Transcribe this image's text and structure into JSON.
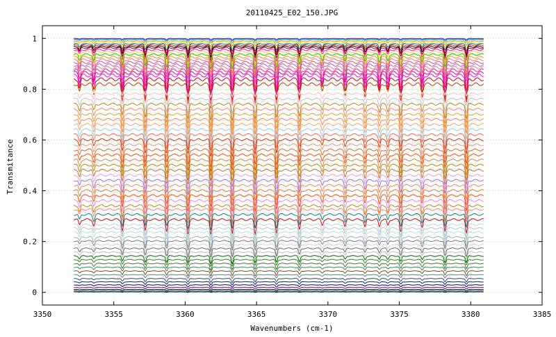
{
  "chart_data": {
    "type": "line",
    "title": "20110425_E02_150.JPG",
    "xlabel": "Wavenumbers (cm-1)",
    "ylabel": "Transmitance",
    "xlim": [
      3350,
      3385
    ],
    "ylim": [
      -0.05,
      1.05
    ],
    "data_x_range": [
      3352.2,
      3380.9
    ],
    "xticks": [
      3350,
      3355,
      3360,
      3365,
      3370,
      3375,
      3380,
      3385
    ],
    "xtick_labels": [
      "3350",
      "3355",
      "3360",
      "3365",
      "3370",
      "3375",
      "3380",
      "3385"
    ],
    "yticks": [
      0,
      0.2,
      0.4,
      0.6,
      0.8,
      1
    ],
    "ytick_labels": [
      "0",
      "0.2",
      "0.4",
      "0.6",
      "0.8",
      "1"
    ],
    "grid": true,
    "legend": "none",
    "absorption_lines": [
      {
        "x": 3352.6,
        "depth": 0.35
      },
      {
        "x": 3353.6,
        "depth": 0.4
      },
      {
        "x": 3355.6,
        "depth": 0.7
      },
      {
        "x": 3357.2,
        "depth": 0.75
      },
      {
        "x": 3358.7,
        "depth": 0.8
      },
      {
        "x": 3360.2,
        "depth": 0.9
      },
      {
        "x": 3361.8,
        "depth": 1.0
      },
      {
        "x": 3363.3,
        "depth": 0.95
      },
      {
        "x": 3364.9,
        "depth": 0.9
      },
      {
        "x": 3366.4,
        "depth": 0.85
      },
      {
        "x": 3368.0,
        "depth": 0.7
      },
      {
        "x": 3369.6,
        "depth": 0.35
      },
      {
        "x": 3371.2,
        "depth": 0.45
      },
      {
        "x": 3372.6,
        "depth": 0.5
      },
      {
        "x": 3373.6,
        "depth": 0.45
      },
      {
        "x": 3374.2,
        "depth": 0.4
      },
      {
        "x": 3375.1,
        "depth": 0.75
      },
      {
        "x": 3376.6,
        "depth": 0.5
      },
      {
        "x": 3378.2,
        "depth": 0.8
      },
      {
        "x": 3379.7,
        "depth": 0.85
      }
    ],
    "series": [
      {
        "baseline": 1.0,
        "depth": 0.005,
        "color": "#9400d3"
      },
      {
        "baseline": 0.998,
        "depth": 0.008,
        "color": "#009e73"
      },
      {
        "baseline": 0.995,
        "depth": 0.012,
        "color": "#56b4e9"
      },
      {
        "baseline": 0.99,
        "depth": 0.02,
        "color": "#e69f00"
      },
      {
        "baseline": 0.985,
        "depth": 0.025,
        "color": "#f0e442"
      },
      {
        "baseline": 0.98,
        "depth": 0.03,
        "color": "#0072b2"
      },
      {
        "baseline": 0.975,
        "depth": 0.035,
        "color": "#e51e10"
      },
      {
        "baseline": 0.97,
        "depth": 0.04,
        "color": "#000000"
      },
      {
        "baseline": 0.965,
        "depth": 0.045,
        "color": "#8b0000"
      },
      {
        "baseline": 0.958,
        "depth": 0.05,
        "color": "#ff00ff"
      },
      {
        "baseline": 0.95,
        "depth": 0.055,
        "color": "#ffd700"
      },
      {
        "baseline": 0.94,
        "depth": 0.06,
        "color": "#00cd00"
      },
      {
        "baseline": 0.93,
        "depth": 0.065,
        "color": "#ff8c00"
      },
      {
        "baseline": 0.92,
        "depth": 0.07,
        "color": "#ff69b4"
      },
      {
        "baseline": 0.91,
        "depth": 0.075,
        "color": "#cd5c5c"
      },
      {
        "baseline": 0.9,
        "depth": 0.08,
        "color": "#ba55d3"
      },
      {
        "baseline": 0.89,
        "depth": 0.085,
        "color": "#f08080"
      },
      {
        "baseline": 0.88,
        "depth": 0.09,
        "color": "#ff1493"
      },
      {
        "baseline": 0.87,
        "depth": 0.095,
        "color": "#c71585"
      },
      {
        "baseline": 0.86,
        "depth": 0.1,
        "color": "#ff00ff"
      },
      {
        "baseline": 0.845,
        "depth": 0.1,
        "color": "#cc0000"
      },
      {
        "baseline": 0.825,
        "depth": 0.09,
        "color": "#cc3300"
      },
      {
        "baseline": 0.8,
        "depth": 0.03,
        "color": "#ccffcc"
      },
      {
        "baseline": 0.785,
        "depth": 0.05,
        "color": "#ffb6c1"
      },
      {
        "baseline": 0.765,
        "depth": 0.06,
        "color": "#c0c0c0"
      },
      {
        "baseline": 0.745,
        "depth": 0.065,
        "color": "#b8860b"
      },
      {
        "baseline": 0.725,
        "depth": 0.065,
        "color": "#fa8072"
      },
      {
        "baseline": 0.705,
        "depth": 0.065,
        "color": "#daa520"
      },
      {
        "baseline": 0.685,
        "depth": 0.065,
        "color": "#ff7f50"
      },
      {
        "baseline": 0.665,
        "depth": 0.065,
        "color": "#f4a460"
      },
      {
        "baseline": 0.645,
        "depth": 0.065,
        "color": "#87ceeb"
      },
      {
        "baseline": 0.625,
        "depth": 0.065,
        "color": "#ff6347"
      },
      {
        "baseline": 0.605,
        "depth": 0.065,
        "color": "#cd3700"
      },
      {
        "baseline": 0.585,
        "depth": 0.065,
        "color": "#e9967a"
      },
      {
        "baseline": 0.565,
        "depth": 0.065,
        "color": "#d2691e"
      },
      {
        "baseline": 0.545,
        "depth": 0.065,
        "color": "#ff4500"
      },
      {
        "baseline": 0.525,
        "depth": 0.065,
        "color": "#cd853f"
      },
      {
        "baseline": 0.505,
        "depth": 0.065,
        "color": "#b8860b"
      },
      {
        "baseline": 0.485,
        "depth": 0.065,
        "color": "#d2691e"
      },
      {
        "baseline": 0.465,
        "depth": 0.065,
        "color": "#dda0dd"
      },
      {
        "baseline": 0.445,
        "depth": 0.065,
        "color": "#9370db"
      },
      {
        "baseline": 0.425,
        "depth": 0.065,
        "color": "#ff7f50"
      },
      {
        "baseline": 0.405,
        "depth": 0.065,
        "color": "#cd853f"
      },
      {
        "baseline": 0.385,
        "depth": 0.065,
        "color": "#ff4500"
      },
      {
        "baseline": 0.365,
        "depth": 0.065,
        "color": "#ee82ee"
      },
      {
        "baseline": 0.345,
        "depth": 0.065,
        "color": "#b8860b"
      },
      {
        "baseline": 0.33,
        "depth": 0.06,
        "color": "#ff7f7f"
      },
      {
        "baseline": 0.31,
        "depth": 0.06,
        "color": "#008080"
      },
      {
        "baseline": 0.29,
        "depth": 0.06,
        "color": "#cd0000"
      },
      {
        "baseline": 0.27,
        "depth": 0.055,
        "color": "#add8e6"
      },
      {
        "baseline": 0.255,
        "depth": 0.05,
        "color": "#c0c0c0"
      },
      {
        "baseline": 0.24,
        "depth": 0.05,
        "color": "#b0e0e6"
      },
      {
        "baseline": 0.22,
        "depth": 0.045,
        "color": "#a9a9a9"
      },
      {
        "baseline": 0.205,
        "depth": 0.04,
        "color": "#808080"
      },
      {
        "baseline": 0.19,
        "depth": 0.04,
        "color": "#d3d3d3"
      },
      {
        "baseline": 0.175,
        "depth": 0.035,
        "color": "#696969"
      },
      {
        "baseline": 0.16,
        "depth": 0.03,
        "color": "#bebebe"
      },
      {
        "baseline": 0.145,
        "depth": 0.03,
        "color": "#006400"
      },
      {
        "baseline": 0.13,
        "depth": 0.025,
        "color": "#228b22"
      },
      {
        "baseline": 0.115,
        "depth": 0.025,
        "color": "#556b2f"
      },
      {
        "baseline": 0.1,
        "depth": 0.02,
        "color": "#2e8b57"
      },
      {
        "baseline": 0.085,
        "depth": 0.02,
        "color": "#8b4513"
      },
      {
        "baseline": 0.07,
        "depth": 0.015,
        "color": "#4682b4"
      },
      {
        "baseline": 0.055,
        "depth": 0.015,
        "color": "#2f4f4f"
      },
      {
        "baseline": 0.042,
        "depth": 0.012,
        "color": "#191970"
      },
      {
        "baseline": 0.03,
        "depth": 0.01,
        "color": "#000080"
      },
      {
        "baseline": 0.02,
        "depth": 0.008,
        "color": "#8b008b"
      },
      {
        "baseline": 0.012,
        "depth": 0.006,
        "color": "#000000"
      },
      {
        "baseline": 0.006,
        "depth": 0.004,
        "color": "#006400"
      },
      {
        "baseline": 0.002,
        "depth": 0.002,
        "color": "#00008b"
      }
    ]
  }
}
